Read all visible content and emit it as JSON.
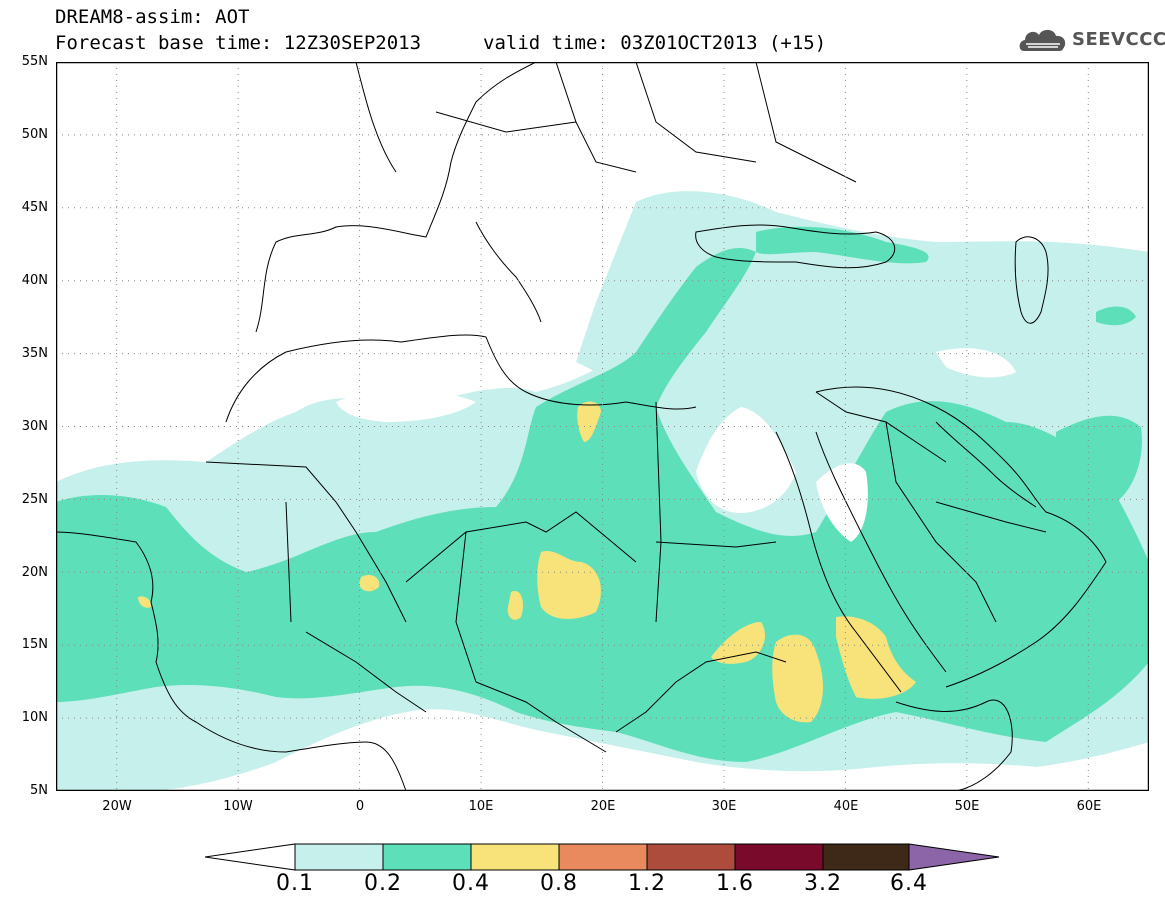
{
  "header": {
    "title": "DREAM8-assim: AOT",
    "base_time": "Forecast base time: 12Z30SEP2013",
    "valid_time": "valid time: 03Z01OCT2013 (+15)"
  },
  "logo": {
    "text": "SEEVCCC",
    "icon": "cloud-logo-icon"
  },
  "map": {
    "lat_labels": [
      "55N",
      "50N",
      "45N",
      "40N",
      "35N",
      "30N",
      "25N",
      "20N",
      "15N",
      "10N",
      "5N"
    ],
    "lon_labels": [
      "20W",
      "10W",
      "0",
      "10E",
      "20E",
      "30E",
      "40E",
      "50E",
      "60E"
    ],
    "lat_range": [
      5,
      55
    ],
    "lon_range": [
      -25,
      65
    ],
    "grid": "dotted"
  },
  "colorbar": {
    "labels": [
      "0.1",
      "0.2",
      "0.4",
      "0.8",
      "1.2",
      "1.6",
      "3.2",
      "6.4"
    ],
    "colors": [
      "#ffffff",
      "#c6f0eb",
      "#5ddfb9",
      "#f7e37a",
      "#e98a5e",
      "#ad4c3c",
      "#7a0a2b",
      "#3e2818",
      "#8c64a8"
    ]
  },
  "legend_colors": {
    "c01": "#c6f0eb",
    "c02": "#5ddfb9",
    "c04": "#f7e37a"
  }
}
